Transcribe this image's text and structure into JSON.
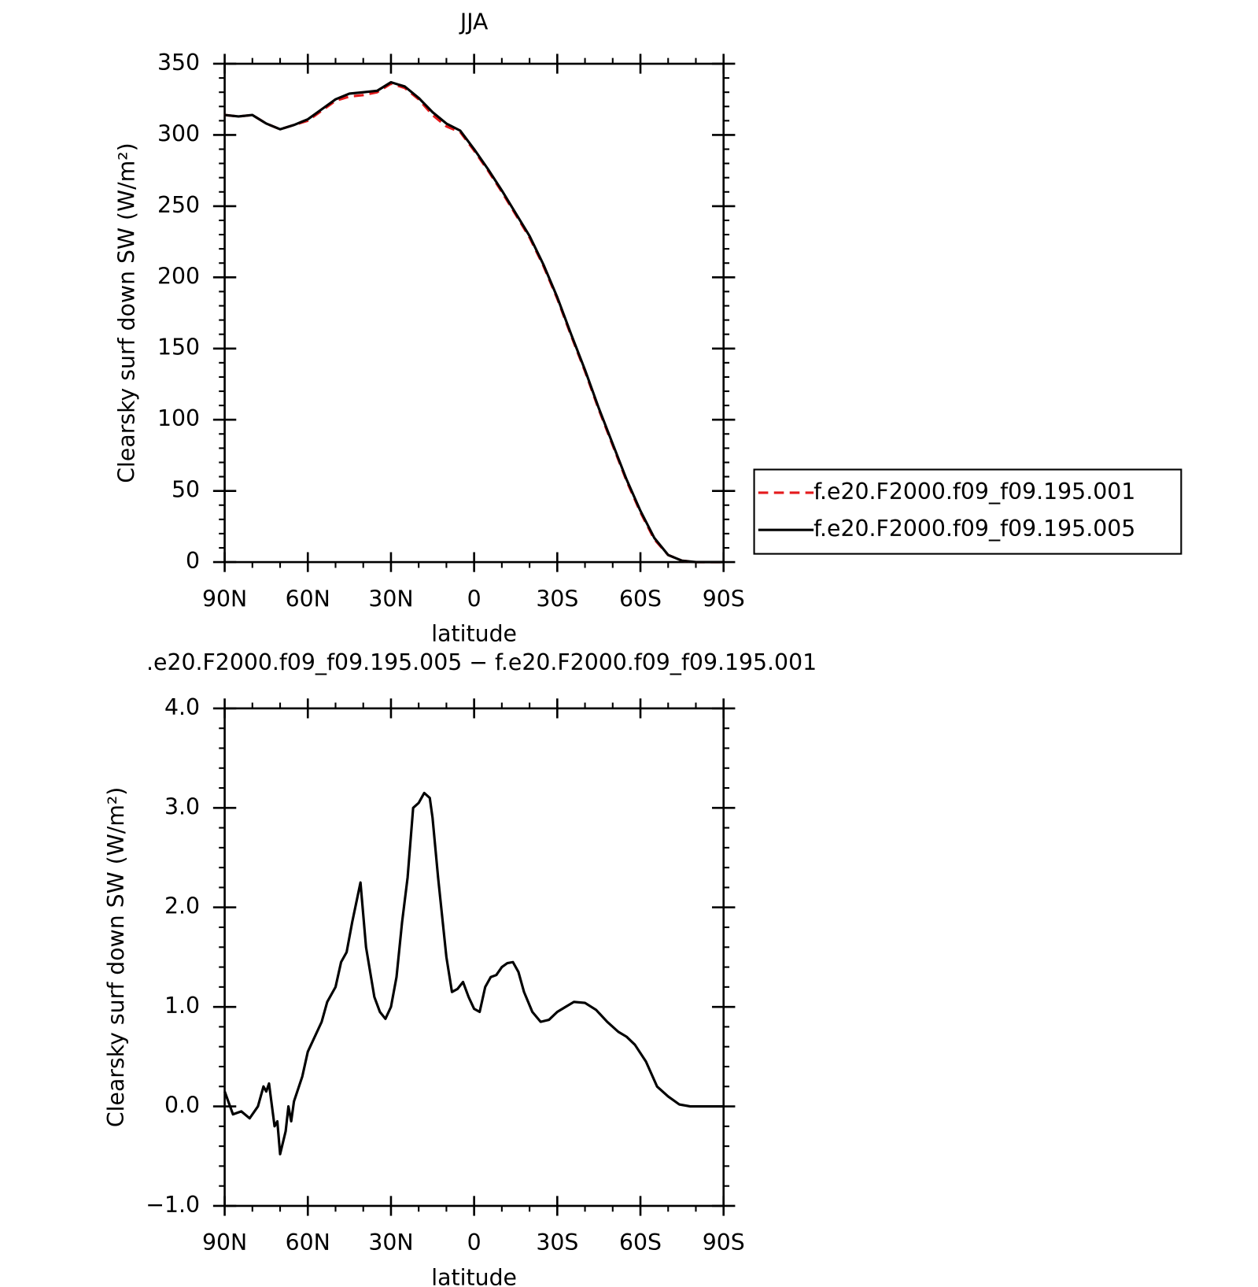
{
  "chart_data": [
    {
      "type": "line",
      "title": "JJA",
      "x_label": "latitude",
      "y_label": "Clearsky surf down SW (W/m²)",
      "x": [
        90,
        85,
        80,
        75,
        70,
        65,
        60,
        55,
        50,
        45,
        40,
        35,
        30,
        25,
        20,
        15,
        10,
        5,
        0,
        -5,
        -10,
        -15,
        -20,
        -25,
        -30,
        -35,
        -40,
        -45,
        -50,
        -55,
        -60,
        -65,
        -70,
        -75,
        -80,
        -85,
        -90
      ],
      "series": [
        {
          "name": "f.e20.F2000.f09_f09.195.001",
          "color": "#e41a1c",
          "dash": true,
          "values": [
            314,
            313,
            314,
            308,
            304,
            307,
            310,
            317,
            324,
            327,
            328,
            330,
            336,
            333,
            325,
            314,
            306,
            302,
            289,
            275,
            260,
            244,
            228,
            208,
            185,
            159,
            134,
            107,
            82,
            57,
            35,
            16,
            5,
            1,
            0,
            0,
            0
          ]
        },
        {
          "name": "f.e20.F2000.f09_f09.195.005",
          "color": "#000000",
          "dash": false,
          "values": [
            314,
            313,
            314,
            308,
            304,
            307,
            311,
            318,
            325,
            329,
            330,
            331,
            337,
            334,
            326,
            316,
            308,
            303,
            290,
            276,
            261,
            245,
            229,
            209,
            186,
            160,
            135,
            108,
            83,
            58,
            36,
            17,
            5,
            1,
            0,
            0,
            0
          ]
        }
      ],
      "xlim": [
        90,
        -90
      ],
      "xticks": [
        {
          "value": 90,
          "label": "90N"
        },
        {
          "value": 60,
          "label": "60N"
        },
        {
          "value": 30,
          "label": "30N"
        },
        0,
        {
          "value": -30,
          "label": "30S"
        },
        {
          "value": -60,
          "label": "60S"
        },
        {
          "value": -90,
          "label": "90S"
        }
      ],
      "ylim": [
        0,
        350
      ],
      "yticks": [
        0,
        50,
        100,
        150,
        200,
        250,
        300,
        350
      ],
      "legend": "right"
    },
    {
      "type": "line",
      "title": ".e20.F2000.f09_f09.195.005 − f.e20.F2000.f09_f09.195.001",
      "x_label": "latitude",
      "y_label": "Clearsky surf down SW (W/m²)",
      "x": [
        90,
        87,
        84,
        81,
        78,
        76,
        75,
        74,
        72,
        71,
        70,
        68,
        67,
        66,
        65,
        62,
        60,
        55,
        53,
        50,
        48,
        46,
        44,
        41,
        39,
        36,
        34,
        32,
        30,
        28,
        26,
        24,
        22,
        20,
        18,
        16,
        15,
        13,
        10,
        8,
        6,
        4,
        2,
        0,
        -2,
        -4,
        -6,
        -8,
        -10,
        -12,
        -14,
        -16,
        -18,
        -21,
        -24,
        -27,
        -30,
        -33,
        -36,
        -40,
        -44,
        -48,
        -52,
        -55,
        -58,
        -62,
        -66,
        -70,
        -74,
        -78,
        -90
      ],
      "series": [
        {
          "color": "#000000",
          "dash": false,
          "values": [
            0.15,
            -0.08,
            -0.05,
            -0.12,
            0.0,
            0.2,
            0.15,
            0.23,
            -0.2,
            -0.15,
            -0.48,
            -0.25,
            0.0,
            -0.15,
            0.05,
            0.3,
            0.55,
            0.85,
            1.05,
            1.2,
            1.45,
            1.55,
            1.85,
            2.25,
            1.6,
            1.1,
            0.95,
            0.88,
            1.0,
            1.3,
            1.85,
            2.3,
            3.0,
            3.05,
            3.15,
            3.1,
            2.9,
            2.3,
            1.5,
            1.15,
            1.18,
            1.25,
            1.1,
            0.98,
            0.95,
            1.2,
            1.3,
            1.32,
            1.4,
            1.44,
            1.45,
            1.35,
            1.15,
            0.95,
            0.85,
            0.87,
            0.95,
            1.0,
            1.05,
            1.04,
            0.97,
            0.85,
            0.75,
            0.7,
            0.62,
            0.45,
            0.2,
            0.1,
            0.02,
            0,
            0
          ]
        }
      ],
      "xlim": [
        90,
        -90
      ],
      "xticks": [
        {
          "value": 90,
          "label": "90N"
        },
        {
          "value": 60,
          "label": "60N"
        },
        {
          "value": 30,
          "label": "30N"
        },
        0,
        {
          "value": -30,
          "label": "30S"
        },
        {
          "value": -60,
          "label": "60S"
        },
        {
          "value": -90,
          "label": "90S"
        }
      ],
      "ylim": [
        -1,
        4
      ],
      "yticks": [
        {
          "value": -1,
          "label": "−1.0"
        },
        {
          "value": 0,
          "label": "0.0"
        },
        {
          "value": 1,
          "label": "1.0"
        },
        {
          "value": 2,
          "label": "2.0"
        },
        {
          "value": 3,
          "label": "3.0"
        },
        {
          "value": 4,
          "label": "4.0"
        }
      ]
    }
  ]
}
